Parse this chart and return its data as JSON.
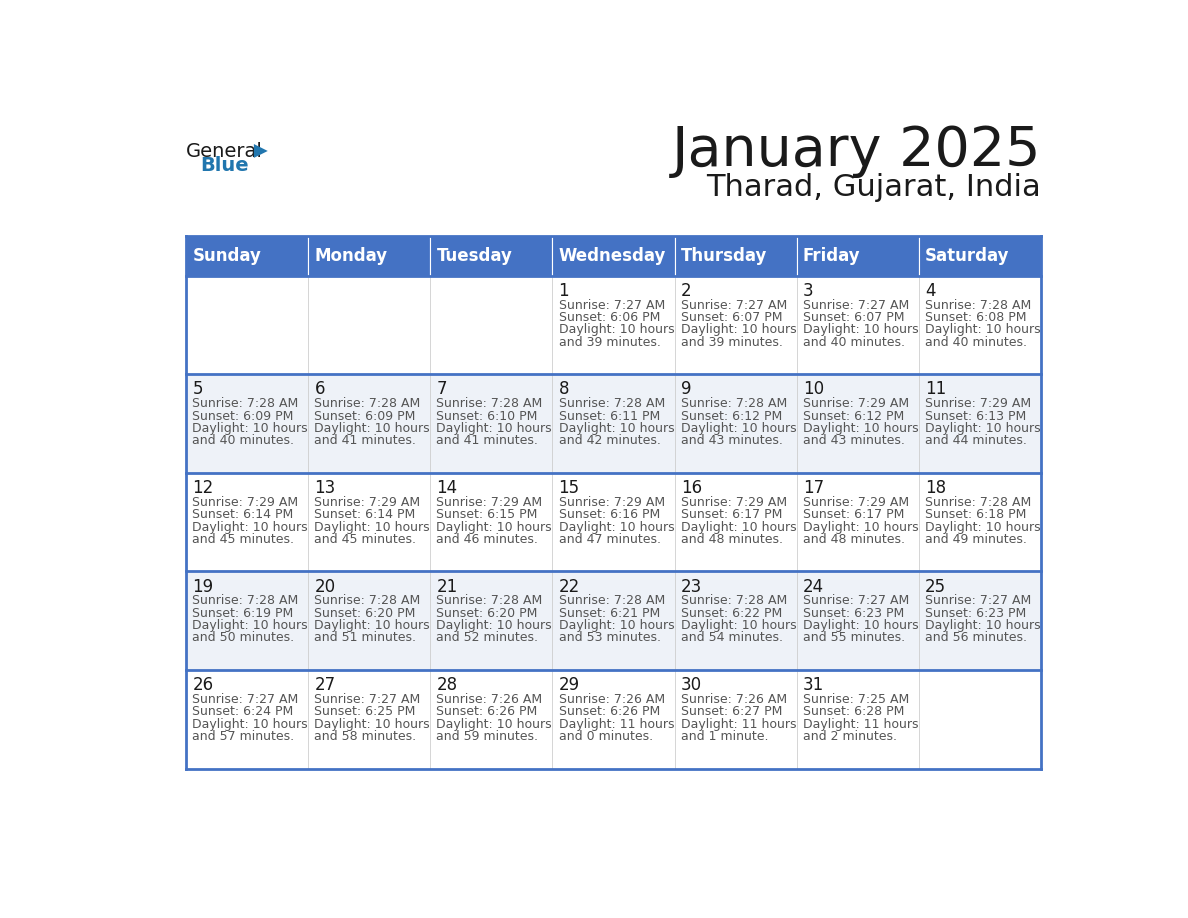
{
  "title": "January 2025",
  "subtitle": "Tharad, Gujarat, India",
  "header_bg": "#4472C4",
  "header_text_color": "#FFFFFF",
  "header_font_size": 12,
  "days_of_week": [
    "Sunday",
    "Monday",
    "Tuesday",
    "Wednesday",
    "Thursday",
    "Friday",
    "Saturday"
  ],
  "title_font_size": 40,
  "subtitle_font_size": 22,
  "day_num_color": "#1a1a1a",
  "info_color": "#555555",
  "row0_bg": "#FFFFFF",
  "row1_bg": "#EEF2F8",
  "border_color": "#4472C4",
  "logo_general_color": "#1a1a1a",
  "logo_blue_color": "#2176AE",
  "logo_triangle_color": "#2176AE",
  "calendar_data": [
    [
      null,
      null,
      null,
      {
        "day": 1,
        "sunrise": "7:27 AM",
        "sunset": "6:06 PM",
        "daylight": "10 hours",
        "daylight2": "and 39 minutes."
      },
      {
        "day": 2,
        "sunrise": "7:27 AM",
        "sunset": "6:07 PM",
        "daylight": "10 hours",
        "daylight2": "and 39 minutes."
      },
      {
        "day": 3,
        "sunrise": "7:27 AM",
        "sunset": "6:07 PM",
        "daylight": "10 hours",
        "daylight2": "and 40 minutes."
      },
      {
        "day": 4,
        "sunrise": "7:28 AM",
        "sunset": "6:08 PM",
        "daylight": "10 hours",
        "daylight2": "and 40 minutes."
      }
    ],
    [
      {
        "day": 5,
        "sunrise": "7:28 AM",
        "sunset": "6:09 PM",
        "daylight": "10 hours",
        "daylight2": "and 40 minutes."
      },
      {
        "day": 6,
        "sunrise": "7:28 AM",
        "sunset": "6:09 PM",
        "daylight": "10 hours",
        "daylight2": "and 41 minutes."
      },
      {
        "day": 7,
        "sunrise": "7:28 AM",
        "sunset": "6:10 PM",
        "daylight": "10 hours",
        "daylight2": "and 41 minutes."
      },
      {
        "day": 8,
        "sunrise": "7:28 AM",
        "sunset": "6:11 PM",
        "daylight": "10 hours",
        "daylight2": "and 42 minutes."
      },
      {
        "day": 9,
        "sunrise": "7:28 AM",
        "sunset": "6:12 PM",
        "daylight": "10 hours",
        "daylight2": "and 43 minutes."
      },
      {
        "day": 10,
        "sunrise": "7:29 AM",
        "sunset": "6:12 PM",
        "daylight": "10 hours",
        "daylight2": "and 43 minutes."
      },
      {
        "day": 11,
        "sunrise": "7:29 AM",
        "sunset": "6:13 PM",
        "daylight": "10 hours",
        "daylight2": "and 44 minutes."
      }
    ],
    [
      {
        "day": 12,
        "sunrise": "7:29 AM",
        "sunset": "6:14 PM",
        "daylight": "10 hours",
        "daylight2": "and 45 minutes."
      },
      {
        "day": 13,
        "sunrise": "7:29 AM",
        "sunset": "6:14 PM",
        "daylight": "10 hours",
        "daylight2": "and 45 minutes."
      },
      {
        "day": 14,
        "sunrise": "7:29 AM",
        "sunset": "6:15 PM",
        "daylight": "10 hours",
        "daylight2": "and 46 minutes."
      },
      {
        "day": 15,
        "sunrise": "7:29 AM",
        "sunset": "6:16 PM",
        "daylight": "10 hours",
        "daylight2": "and 47 minutes."
      },
      {
        "day": 16,
        "sunrise": "7:29 AM",
        "sunset": "6:17 PM",
        "daylight": "10 hours",
        "daylight2": "and 48 minutes."
      },
      {
        "day": 17,
        "sunrise": "7:29 AM",
        "sunset": "6:17 PM",
        "daylight": "10 hours",
        "daylight2": "and 48 minutes."
      },
      {
        "day": 18,
        "sunrise": "7:28 AM",
        "sunset": "6:18 PM",
        "daylight": "10 hours",
        "daylight2": "and 49 minutes."
      }
    ],
    [
      {
        "day": 19,
        "sunrise": "7:28 AM",
        "sunset": "6:19 PM",
        "daylight": "10 hours",
        "daylight2": "and 50 minutes."
      },
      {
        "day": 20,
        "sunrise": "7:28 AM",
        "sunset": "6:20 PM",
        "daylight": "10 hours",
        "daylight2": "and 51 minutes."
      },
      {
        "day": 21,
        "sunrise": "7:28 AM",
        "sunset": "6:20 PM",
        "daylight": "10 hours",
        "daylight2": "and 52 minutes."
      },
      {
        "day": 22,
        "sunrise": "7:28 AM",
        "sunset": "6:21 PM",
        "daylight": "10 hours",
        "daylight2": "and 53 minutes."
      },
      {
        "day": 23,
        "sunrise": "7:28 AM",
        "sunset": "6:22 PM",
        "daylight": "10 hours",
        "daylight2": "and 54 minutes."
      },
      {
        "day": 24,
        "sunrise": "7:27 AM",
        "sunset": "6:23 PM",
        "daylight": "10 hours",
        "daylight2": "and 55 minutes."
      },
      {
        "day": 25,
        "sunrise": "7:27 AM",
        "sunset": "6:23 PM",
        "daylight": "10 hours",
        "daylight2": "and 56 minutes."
      }
    ],
    [
      {
        "day": 26,
        "sunrise": "7:27 AM",
        "sunset": "6:24 PM",
        "daylight": "10 hours",
        "daylight2": "and 57 minutes."
      },
      {
        "day": 27,
        "sunrise": "7:27 AM",
        "sunset": "6:25 PM",
        "daylight": "10 hours",
        "daylight2": "and 58 minutes."
      },
      {
        "day": 28,
        "sunrise": "7:26 AM",
        "sunset": "6:26 PM",
        "daylight": "10 hours",
        "daylight2": "and 59 minutes."
      },
      {
        "day": 29,
        "sunrise": "7:26 AM",
        "sunset": "6:26 PM",
        "daylight": "11 hours",
        "daylight2": "and 0 minutes."
      },
      {
        "day": 30,
        "sunrise": "7:26 AM",
        "sunset": "6:27 PM",
        "daylight": "11 hours",
        "daylight2": "and 1 minute."
      },
      {
        "day": 31,
        "sunrise": "7:25 AM",
        "sunset": "6:28 PM",
        "daylight": "11 hours",
        "daylight2": "and 2 minutes."
      },
      null
    ]
  ]
}
